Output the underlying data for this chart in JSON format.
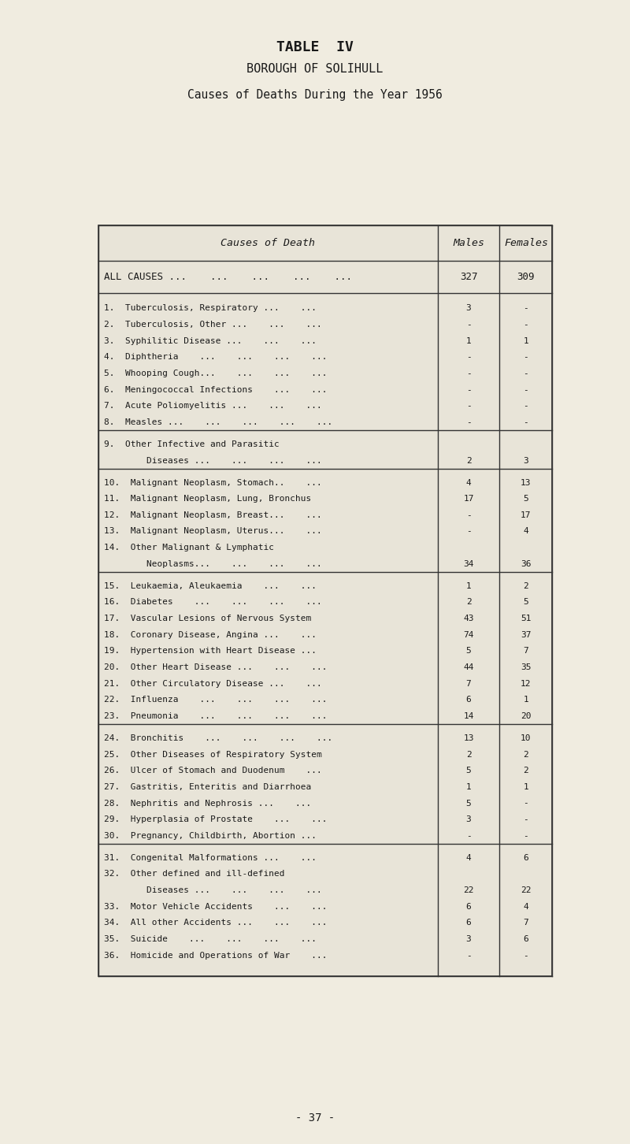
{
  "title1": "TABLE  IV",
  "title2": "BOROUGH OF SOLIHULL",
  "title3": "Causes of Deaths During the Year 1956",
  "col_header": [
    "Causes of Death",
    "Males",
    "Females"
  ],
  "all_causes": [
    "ALL CAUSES ...    ...    ...    ...    ...",
    "327",
    "309"
  ],
  "rows": [
    [
      "1.  Tuberculosis, Respiratory ...    ...",
      "3",
      "-"
    ],
    [
      "2.  Tuberculosis, Other ...    ...    ...",
      "-",
      "-"
    ],
    [
      "3.  Syphilitic Disease ...    ...    ...",
      "1",
      "1"
    ],
    [
      "4.  Diphtheria    ...    ...    ...    ...",
      "-",
      "-"
    ],
    [
      "5.  Whooping Cough...    ...    ...    ...",
      "-",
      "-"
    ],
    [
      "6.  Meningococcal Infections    ...    ...",
      "-",
      "-"
    ],
    [
      "7.  Acute Poliomyelitis ...    ...    ...",
      "-",
      "-"
    ],
    [
      "8.  Measles ...    ...    ...    ...    ...",
      "-",
      "-"
    ],
    [
      "9.  Other Infective and Parasitic",
      "",
      ""
    ],
    [
      "        Diseases ...    ...    ...    ...",
      "2",
      "3"
    ],
    [
      "10.  Malignant Neoplasm, Stomach..    ...",
      "4",
      "13"
    ],
    [
      "11.  Malignant Neoplasm, Lung, Bronchus",
      "17",
      "5"
    ],
    [
      "12.  Malignant Neoplasm, Breast...    ...",
      "-",
      "17"
    ],
    [
      "13.  Malignant Neoplasm, Uterus...    ...",
      "-",
      "4"
    ],
    [
      "14.  Other Malignant & Lymphatic",
      "",
      ""
    ],
    [
      "        Neoplasms...    ...    ...    ...",
      "34",
      "36"
    ],
    [
      "15.  Leukaemia, Aleukaemia    ...    ...",
      "1",
      "2"
    ],
    [
      "16.  Diabetes    ...    ...    ...    ...",
      "2",
      "5"
    ],
    [
      "17.  Vascular Lesions of Nervous System",
      "43",
      "51"
    ],
    [
      "18.  Coronary Disease, Angina ...    ...",
      "74",
      "37"
    ],
    [
      "19.  Hypertension with Heart Disease ...",
      "5",
      "7"
    ],
    [
      "20.  Other Heart Disease ...    ...    ...",
      "44",
      "35"
    ],
    [
      "21.  Other Circulatory Disease ...    ...",
      "7",
      "12"
    ],
    [
      "22.  Influenza    ...    ...    ...    ...",
      "6",
      "1"
    ],
    [
      "23.  Pneumonia    ...    ...    ...    ...",
      "14",
      "20"
    ],
    [
      "24.  Bronchitis    ...    ...    ...    ...",
      "13",
      "10"
    ],
    [
      "25.  Other Diseases of Respiratory System",
      "2",
      "2"
    ],
    [
      "26.  Ulcer of Stomach and Duodenum    ...",
      "5",
      "2"
    ],
    [
      "27.  Gastritis, Enteritis and Diarrhoea",
      "1",
      "1"
    ],
    [
      "28.  Nephritis and Nephrosis ...    ...",
      "5",
      "-"
    ],
    [
      "29.  Hyperplasia of Prostate    ...    ...",
      "3",
      "-"
    ],
    [
      "30.  Pregnancy, Childbirth, Abortion ...",
      "-",
      "-"
    ],
    [
      "31.  Congenital Malformations ...    ...",
      "4",
      "6"
    ],
    [
      "32.  Other defined and ill-defined",
      "",
      ""
    ],
    [
      "        Diseases ...    ...    ...    ...",
      "22",
      "22"
    ],
    [
      "33.  Motor Vehicle Accidents    ...    ...",
      "6",
      "4"
    ],
    [
      "34.  All other Accidents ...    ...    ...",
      "6",
      "7"
    ],
    [
      "35.  Suicide    ...    ...    ...    ...",
      "3",
      "6"
    ],
    [
      "36.  Homicide and Operations of War    ...",
      "-",
      "-"
    ]
  ],
  "page_num": "- 37 -",
  "bg_color": "#f0ece0",
  "text_color": "#1a1a1a",
  "table_bg": "#e8e4d8",
  "line_color": "#333333",
  "group_ends": [
    7,
    9,
    15,
    24,
    31,
    38
  ]
}
